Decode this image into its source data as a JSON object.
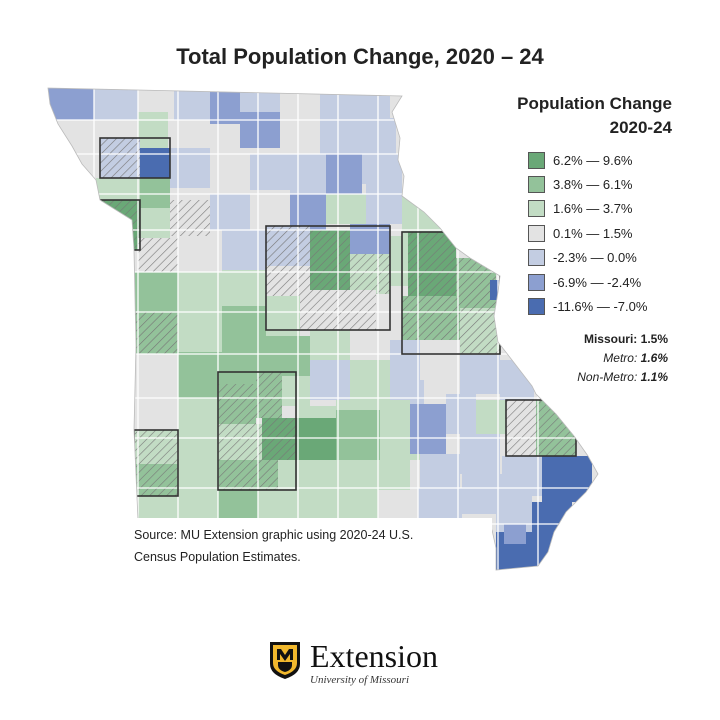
{
  "title": "Total Population Change, 2020 – 24",
  "legend": {
    "title_line1": "Population Change",
    "title_line2": "2020-24",
    "items": [
      {
        "label": "6.2% — 9.6%",
        "color": "#6aa877"
      },
      {
        "label": "3.8% — 6.1%",
        "color": "#93c29a"
      },
      {
        "label": "1.6% — 3.7%",
        "color": "#c2dcc4"
      },
      {
        "label": "0.1% — 1.5%",
        "color": "#e3e3e3"
      },
      {
        "label": "-2.3% — 0.0%",
        "color": "#c3cde2"
      },
      {
        "label": "-6.9% — -2.4%",
        "color": "#8c9fd0"
      },
      {
        "label": "-11.6% — -7.0%",
        "color": "#4a6cb0"
      }
    ]
  },
  "stats": {
    "missouri_label": "Missouri:",
    "missouri_value": "1.5%",
    "metro_label": "Metro:",
    "metro_value": "1.6%",
    "nonmetro_label": "Non-Metro:",
    "nonmetro_value": "1.1%"
  },
  "source": {
    "line1": "Source: MU Extension graphic using 2020-24 U.S.",
    "line2": "Census Population Estimates."
  },
  "logo": {
    "brand": "Extension",
    "sub": "University of Missouri",
    "shield_color": "#f1b82d"
  },
  "map": {
    "metro_outline": "#333333",
    "hatch_note": ""
  }
}
